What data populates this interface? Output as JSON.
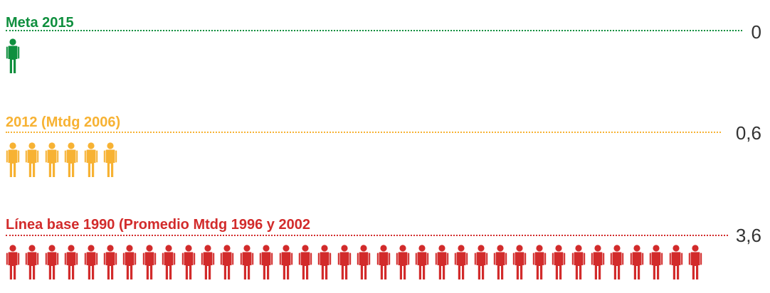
{
  "chart_data": {
    "type": "pictogram",
    "rows": [
      {
        "label": "Meta 2015",
        "value_label": "0",
        "value": 0,
        "icons": 1,
        "color": "#0f8f3e"
      },
      {
        "label": "2012 (Mtdg 2006)",
        "value_label": "0,6",
        "value": 0.6,
        "icons": 6,
        "color": "#f7b233"
      },
      {
        "label": "Línea base 1990 (Promedio Mtdg 1996 y 2002",
        "value_label": "3,6",
        "value": 3.6,
        "icons": 36,
        "color": "#d22b2b"
      }
    ]
  }
}
